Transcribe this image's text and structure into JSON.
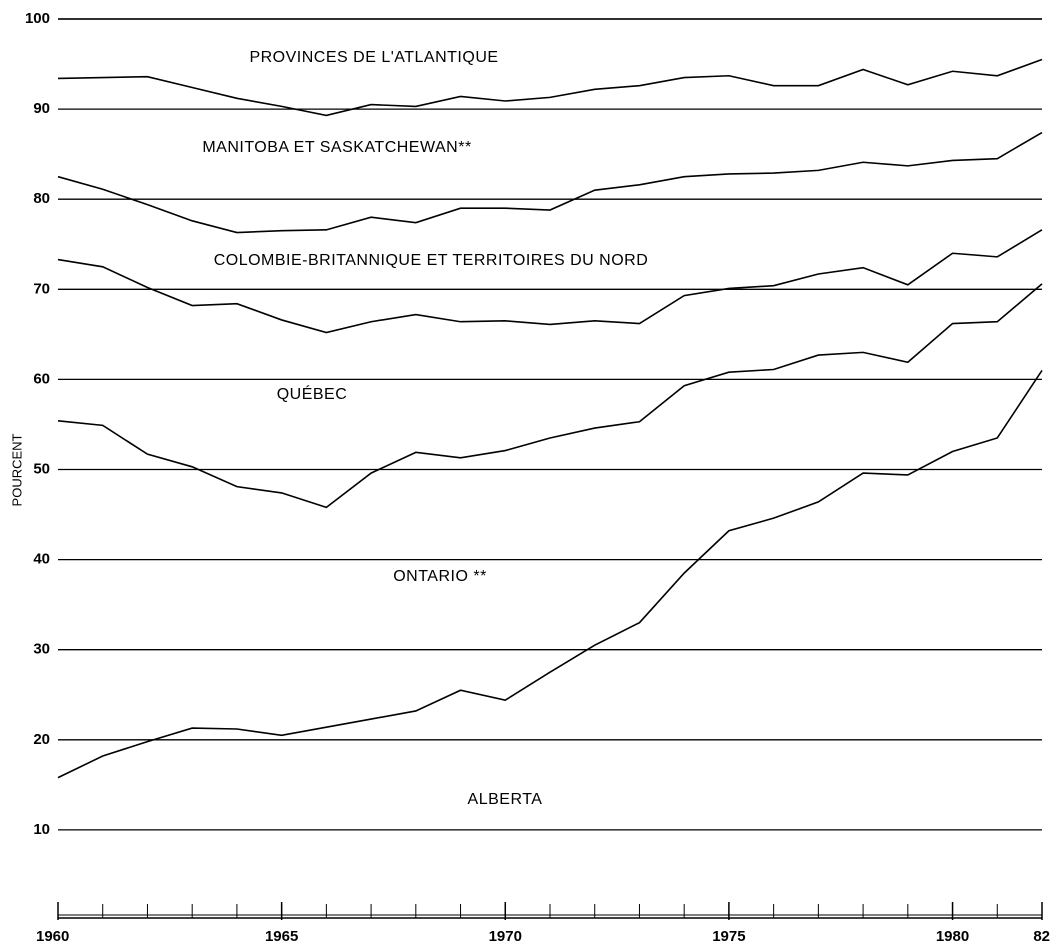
{
  "chart_data": {
    "type": "stacked_line",
    "y_label": "POURCENT",
    "x": [
      1960,
      1961,
      1962,
      1963,
      1964,
      1965,
      1966,
      1967,
      1968,
      1969,
      1970,
      1971,
      1972,
      1973,
      1974,
      1975,
      1976,
      1977,
      1978,
      1979,
      1980,
      1981,
      1982
    ],
    "series": [
      {
        "name": "ALBERTA",
        "color": "#000000",
        "values": [
          15.8,
          18.2,
          19.8,
          21.3,
          21.2,
          20.5,
          21.4,
          22.3,
          23.2,
          25.5,
          24.4,
          27.5,
          30.5,
          33.0,
          38.5,
          43.2,
          44.6,
          46.4,
          49.6,
          49.4,
          52.0,
          53.5,
          61.0
        ]
      },
      {
        "name": "ONTARIO **",
        "color": "#000000",
        "values": [
          39.6,
          36.7,
          31.9,
          29.0,
          26.9,
          26.9,
          24.4,
          27.3,
          28.7,
          25.8,
          27.7,
          26.0,
          24.1,
          22.3,
          20.8,
          17.6,
          16.5,
          16.3,
          13.4,
          12.5,
          14.2,
          12.9,
          9.6
        ]
      },
      {
        "name": "QUÉBEC",
        "color": "#000000",
        "values": [
          17.9,
          17.6,
          18.5,
          17.9,
          20.3,
          19.2,
          19.4,
          16.8,
          15.3,
          15.1,
          14.4,
          12.6,
          11.9,
          10.9,
          10.0,
          9.3,
          9.3,
          9.0,
          9.4,
          8.6,
          7.8,
          7.2,
          6.0
        ]
      },
      {
        "name": "COLOMBIE-BRITANNIQUE ET TERRITOIRES DU NORD",
        "color": "#000000",
        "values": [
          9.2,
          8.6,
          9.2,
          9.4,
          7.9,
          9.9,
          11.4,
          11.6,
          10.2,
          12.6,
          12.5,
          12.7,
          14.5,
          15.4,
          13.2,
          12.7,
          12.5,
          11.5,
          11.7,
          13.2,
          10.3,
          10.9,
          10.8
        ]
      },
      {
        "name": "MANITOBA ET SASKATCHEWAN**",
        "color": "#000000",
        "values": [
          10.9,
          12.4,
          14.2,
          14.8,
          14.9,
          13.8,
          12.7,
          12.5,
          12.9,
          12.4,
          11.9,
          12.5,
          11.2,
          11.0,
          11.0,
          10.9,
          9.7,
          9.4,
          10.3,
          9.0,
          9.9,
          9.2,
          8.1
        ]
      },
      {
        "name": "PROVINCES DE L'ATLANTIQUE",
        "color": "#000000",
        "values": [
          6.6,
          6.5,
          6.4,
          7.6,
          8.8,
          9.7,
          10.7,
          9.5,
          9.7,
          8.6,
          9.1,
          8.7,
          7.8,
          7.4,
          6.5,
          6.3,
          7.4,
          7.4,
          5.6,
          7.3,
          5.8,
          6.3,
          4.5
        ]
      }
    ],
    "xlim": [
      1960,
      1982
    ],
    "xticks": [
      1960,
      1965,
      1970,
      1975,
      1980,
      {
        "value": 1982,
        "label": "82"
      }
    ],
    "ylim": [
      0,
      100
    ],
    "yticks": [
      10,
      20,
      30,
      40,
      50,
      60,
      70,
      80,
      90,
      100
    ],
    "grid": true
  }
}
